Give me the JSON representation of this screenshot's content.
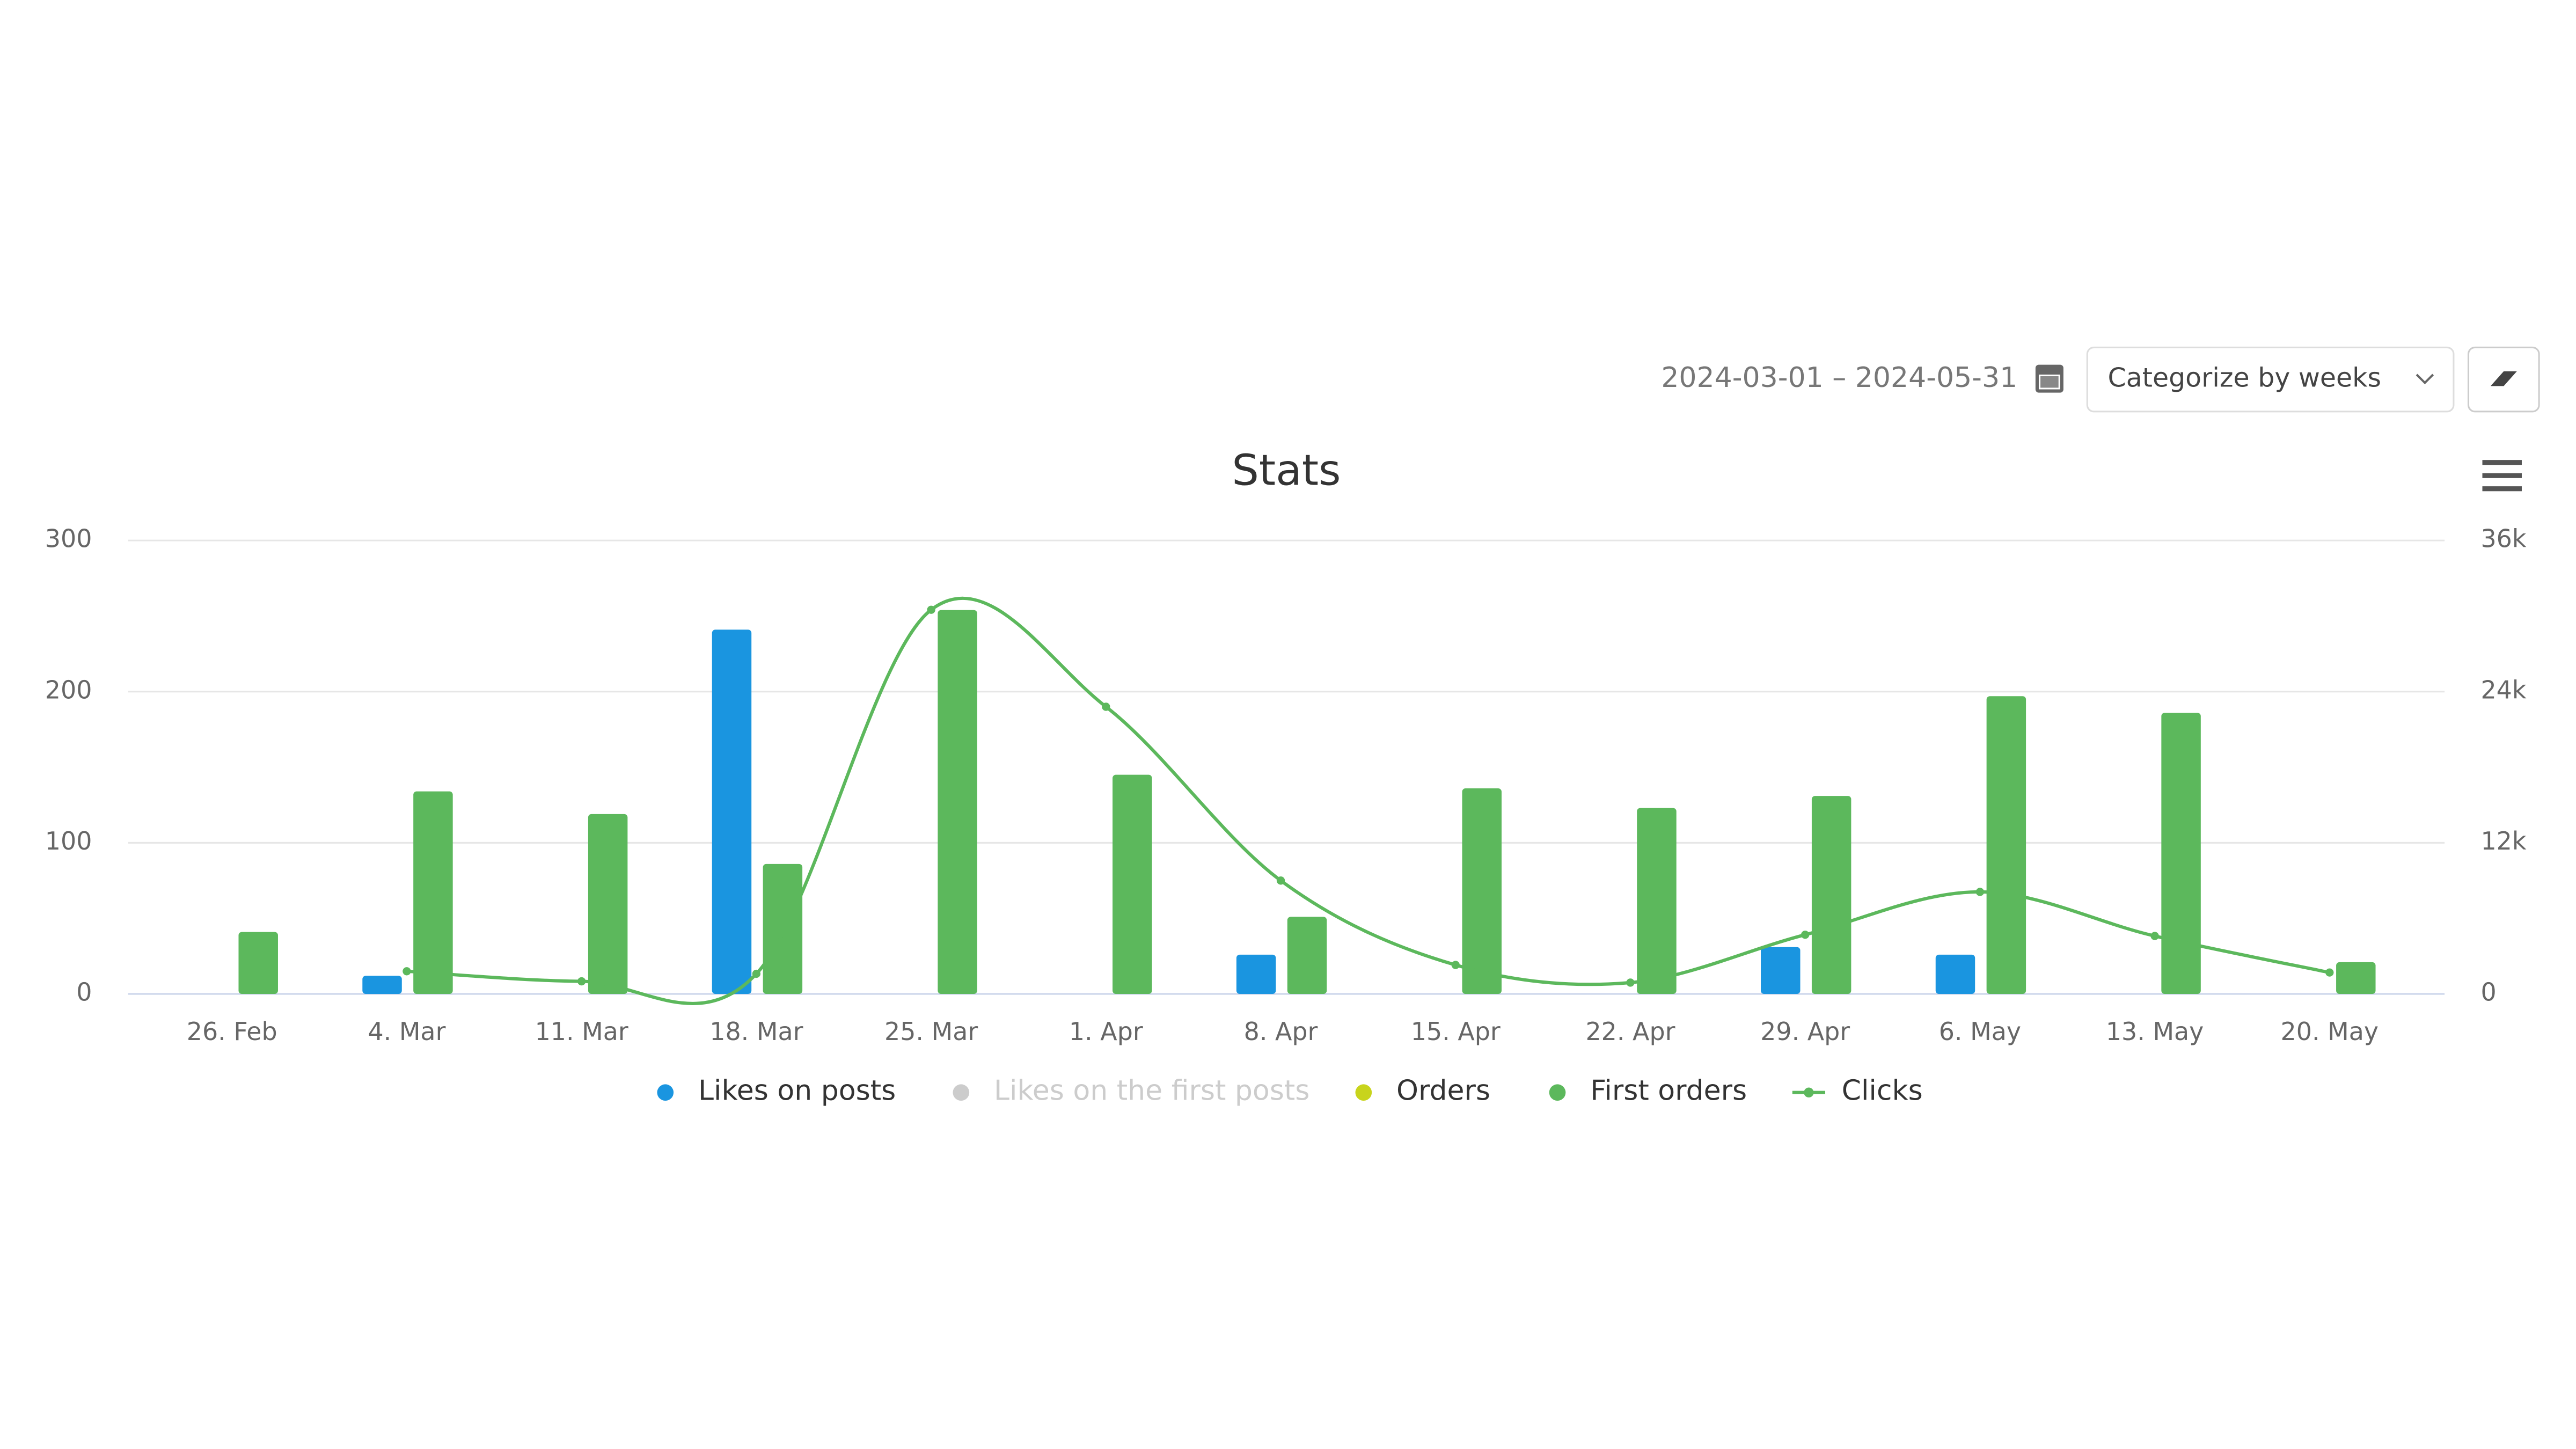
{
  "controls": {
    "date_range": "2024-03-01 – 2024-05-31",
    "group_by": "Categorize by weeks"
  },
  "chart_data": {
    "type": "bar",
    "title": "Stats",
    "categories": [
      "26. Feb",
      "4. Mar",
      "11. Mar",
      "18. Mar",
      "25. Mar",
      "1. Apr",
      "8. Apr",
      "15. Apr",
      "22. Apr",
      "29. Apr",
      "6. May",
      "13. May",
      "20. May"
    ],
    "series": [
      {
        "name": "Likes on posts",
        "color": "#1a95e0",
        "type": "bar",
        "values": [
          null,
          12,
          null,
          241,
          null,
          null,
          26,
          null,
          null,
          31,
          26,
          null,
          null
        ]
      },
      {
        "name": "Likes on the first posts",
        "color": "#cccccc",
        "type": "bar",
        "visible": false,
        "values": [
          null,
          null,
          null,
          null,
          null,
          null,
          null,
          null,
          null,
          null,
          null,
          null,
          null
        ]
      },
      {
        "name": "Orders",
        "color": "#c8d41c",
        "type": "bar",
        "values": [
          null,
          null,
          null,
          null,
          null,
          null,
          null,
          null,
          null,
          null,
          null,
          null,
          null
        ]
      },
      {
        "name": "First orders",
        "color": "#5cb85c",
        "type": "bar",
        "values": [
          41,
          134,
          119,
          86,
          254,
          145,
          51,
          136,
          123,
          131,
          197,
          186,
          21
        ]
      },
      {
        "name": "Clicks",
        "color": "#5cb85c",
        "type": "line",
        "axis": "y2",
        "values": [
          null,
          1800,
          1000,
          1600,
          30500,
          22800,
          9000,
          2300,
          900,
          4700,
          8100,
          4600,
          1700
        ]
      }
    ],
    "ylim": [
      0,
      300
    ],
    "yticks": [
      0,
      100,
      200,
      300
    ],
    "y2lim": [
      0,
      36000
    ],
    "y2ticks": [
      0,
      {
        "value": 12000,
        "label": "12k"
      },
      {
        "value": 24000,
        "label": "24k"
      },
      {
        "value": 36000,
        "label": "36k"
      }
    ],
    "grid": true,
    "legend": "bottom"
  }
}
